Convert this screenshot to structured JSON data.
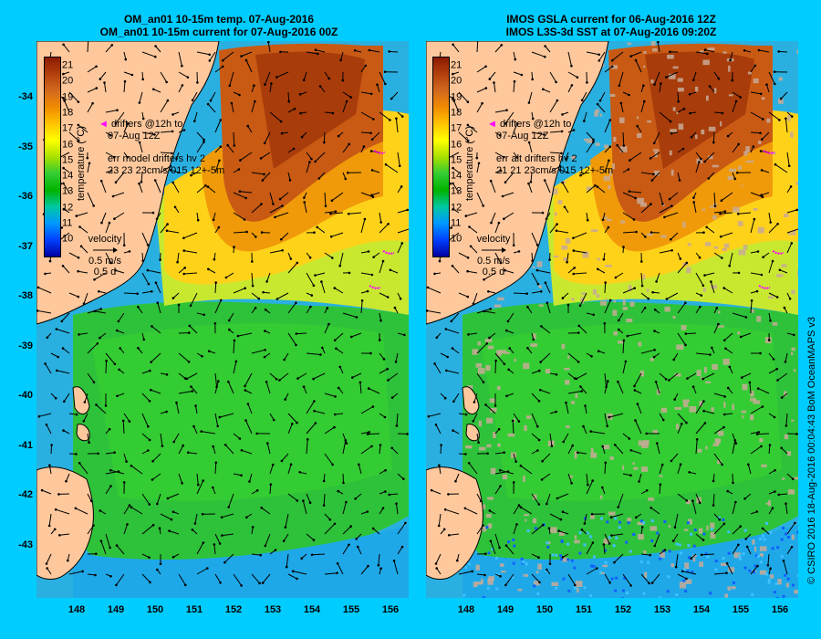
{
  "left_panel": {
    "title_line1": "OM_an01 10-15m temp. 07-Aug-2016",
    "title_line2": "OM_an01 10-15m current for 07-Aug-2016 00Z",
    "legend_line1": "drifters @12h to",
    "legend_line2": "07-Aug 12Z",
    "err_line1": "err model drifters hv 2",
    "err_line2": "23 23 23cm/s 015 12+-5m"
  },
  "right_panel": {
    "title_line1": "IMOS GSLA current for 06-Aug-2016 12Z",
    "title_line2": "IMOS L3S-3d SST at 07-Aug-2016 09:20Z",
    "legend_line1": "drifters @12h to",
    "legend_line2": "07-Aug 12Z",
    "err_line1": "err alt drifters hv 2",
    "err_line2": "21 21 23cm/s 015 12+-5m"
  },
  "colorbar": {
    "title": "temperature (°C)",
    "ticks": [
      "21",
      "20",
      "19",
      "18",
      "17",
      "16",
      "15",
      "14",
      "13",
      "12",
      "11",
      "10"
    ],
    "colors": [
      "#8b1a00",
      "#b3400d",
      "#d2691e",
      "#f08c00",
      "#ffc400",
      "#ffff00",
      "#a8e000",
      "#33cc33",
      "#00b300",
      "#00c8a0",
      "#0099ff",
      "#0040ff",
      "#0000a0"
    ]
  },
  "velocity_key": {
    "label": "velocity",
    "speed": "0.5 m/s",
    "time": "0.5 d"
  },
  "axes": {
    "y_ticks": [
      "-34",
      "-35",
      "-36",
      "-37",
      "-38",
      "-39",
      "-40",
      "-41",
      "-42",
      "-43"
    ],
    "x_ticks": [
      "148",
      "149",
      "150",
      "151",
      "152",
      "153",
      "154",
      "155",
      "156"
    ]
  },
  "credit": "© CSIRO 2016   18-Aug-2016 00:04:43 BoM OceanMAPS v3",
  "colors": {
    "background": "#00ccff",
    "land": "#ffc89c",
    "drifter_track": "#ff00ff",
    "missing_data": "#c8aa96"
  }
}
